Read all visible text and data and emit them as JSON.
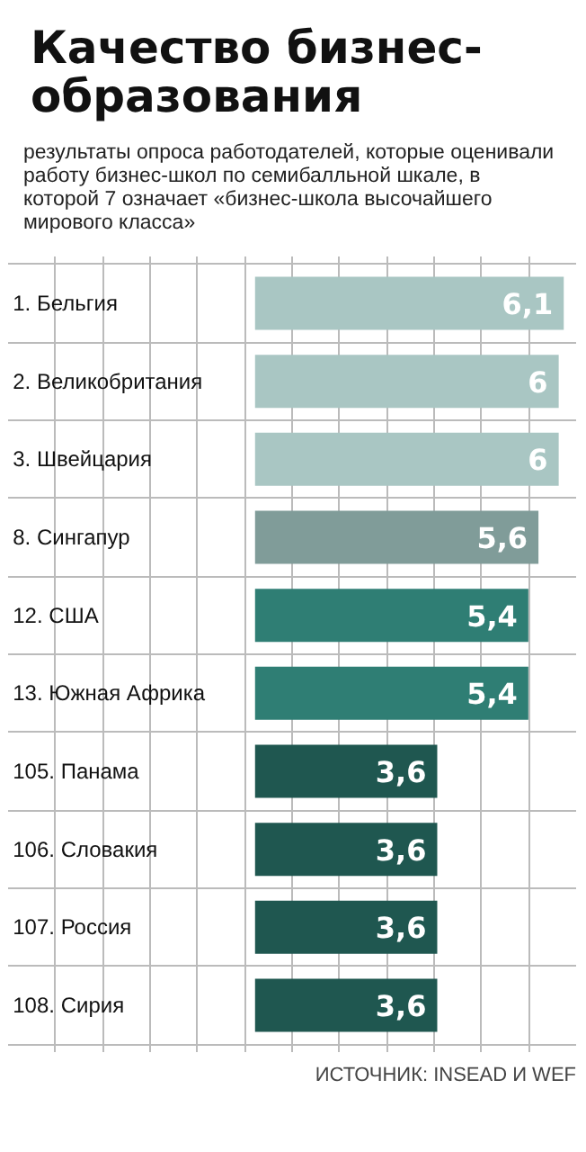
{
  "chart_data": {
    "type": "bar",
    "orientation": "horizontal",
    "title": "Качество бизнес-образования",
    "subtitle": "результаты опроса работодателей, которые оценивали работу бизнес-школ по семибалльной шкале, в которой 7 означает «бизнес-школа высочайшего мирового класса»",
    "categories": [
      "1. Бельгия",
      "2. Великобритания",
      "3. Швейцария",
      "8. Сингапур",
      "12. США",
      "13. Южная Африка",
      "105. Панама",
      "106. Словакия",
      "107. Россия",
      "108. Сирия"
    ],
    "values": [
      6.1,
      6,
      6,
      5.6,
      5.4,
      5.4,
      3.6,
      3.6,
      3.6,
      3.6
    ],
    "colors": [
      "#a9c6c3",
      "#a9c6c3",
      "#a9c6c3",
      "#809c99",
      "#2f7e74",
      "#2f7e74",
      "#1f5750",
      "#1f5750",
      "#1f5750",
      "#1f5750"
    ],
    "value_labels": [
      "6,1",
      "6",
      "6",
      "5,6",
      "5,4",
      "5,4",
      "3,6",
      "3,6",
      "3,6",
      "3,6"
    ],
    "annotations": [
      "ИСТОЧНИК: INSEAD И WEF"
    ],
    "grid": true
  }
}
